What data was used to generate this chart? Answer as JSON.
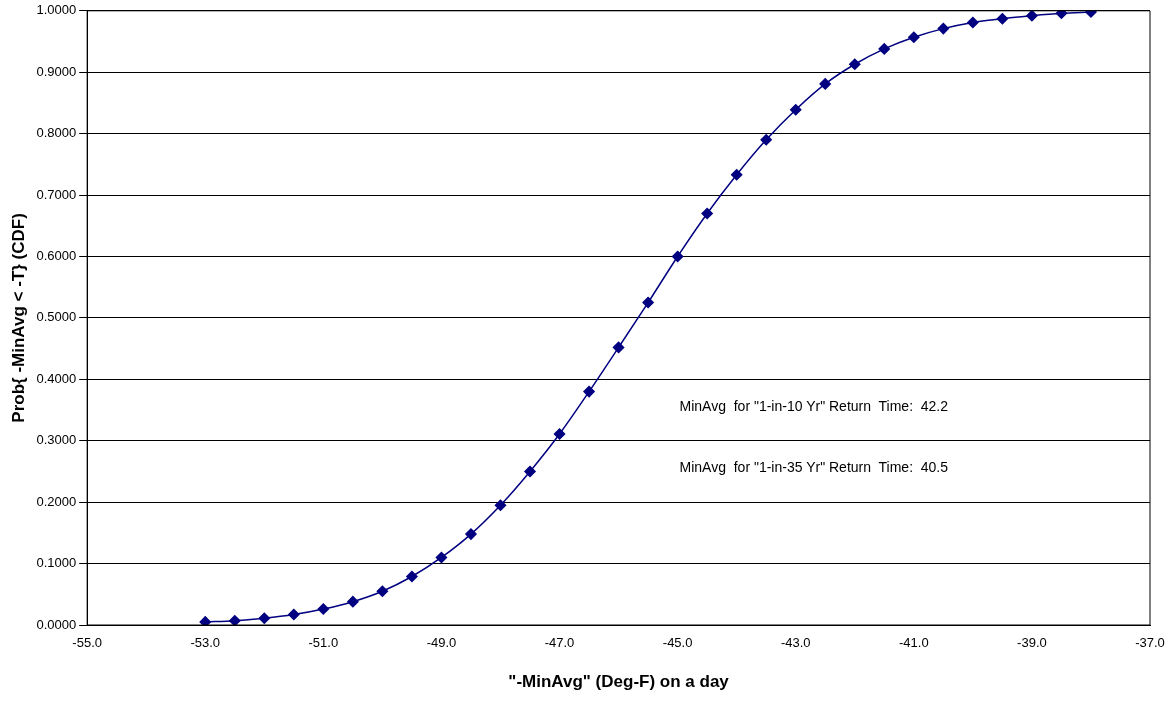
{
  "chart_data": {
    "type": "line",
    "xlabel": "\"-MinAvg\" (Deg-F) on a day",
    "ylabel": "Prob{ -MinAvg < -T} (CDF)",
    "x": [
      -53,
      -52.5,
      -52,
      -51.5,
      -51,
      -50.5,
      -50,
      -49.5,
      -49,
      -48.5,
      -48,
      -47.5,
      -47,
      -46.5,
      -46,
      -45.5,
      -45,
      -44.5,
      -44,
      -43.5,
      -43,
      -42.5,
      -42,
      -41.5,
      -41,
      -40.5,
      -40,
      -39.5,
      -39,
      -38.5,
      -38
    ],
    "series": [
      {
        "color": "#000080",
        "values": [
          0.005,
          0.007,
          0.011,
          0.017,
          0.026,
          0.038,
          0.055,
          0.079,
          0.11,
          0.148,
          0.195,
          0.25,
          0.311,
          0.38,
          0.452,
          0.525,
          0.6,
          0.67,
          0.733,
          0.79,
          0.839,
          0.881,
          0.913,
          0.938,
          0.957,
          0.971,
          0.981,
          0.987,
          0.992,
          0.996,
          0.998
        ]
      }
    ],
    "xlim": [
      -55,
      -37
    ],
    "xticks": [
      {
        "value": -55,
        "label": "-55.0"
      },
      {
        "value": -53,
        "label": "-53.0"
      },
      {
        "value": -51,
        "label": "-51.0"
      },
      {
        "value": -49,
        "label": "-49.0"
      },
      {
        "value": -47,
        "label": "-47.0"
      },
      {
        "value": -45,
        "label": "-45.0"
      },
      {
        "value": -43,
        "label": "-43.0"
      },
      {
        "value": -41,
        "label": "-41.0"
      },
      {
        "value": -39,
        "label": "-39.0"
      },
      {
        "value": -37,
        "label": "-37.0"
      }
    ],
    "ylim": [
      0,
      1
    ],
    "yticks": [
      {
        "value": 0,
        "label": "0.0000"
      },
      {
        "value": 0.1,
        "label": "0.1000"
      },
      {
        "value": 0.2,
        "label": "0.2000"
      },
      {
        "value": 0.3,
        "label": "0.3000"
      },
      {
        "value": 0.4,
        "label": "0.4000"
      },
      {
        "value": 0.5,
        "label": "0.5000"
      },
      {
        "value": 0.6,
        "label": "0.6000"
      },
      {
        "value": 0.7,
        "label": "0.7000"
      },
      {
        "value": 0.8,
        "label": "0.8000"
      },
      {
        "value": 0.9,
        "label": "0.9000"
      },
      {
        "value": 1,
        "label": "1.0000"
      }
    ],
    "annotations": [
      "MinAvg  for \"1-in-10 Yr\" Return  Time:  42.2",
      "MinAvg  for \"1-in-35 Yr\" Return  Time:  40.5"
    ],
    "grid": "y",
    "legend": false,
    "marker": "diamond",
    "line_style": "solid"
  }
}
